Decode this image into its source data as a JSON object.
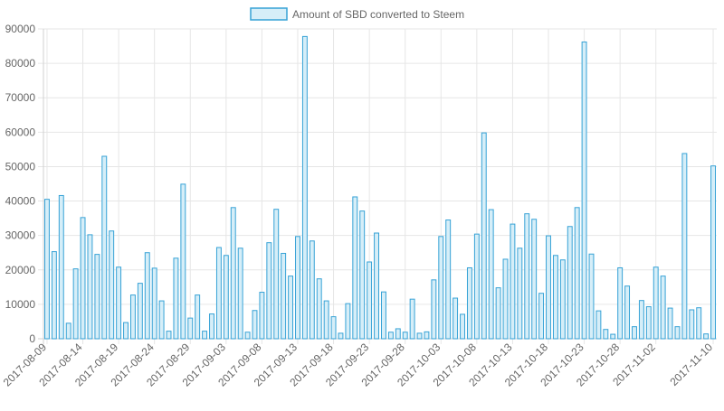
{
  "legend": {
    "label": "Amount of SBD converted to Steem"
  },
  "colors": {
    "bar_fill": "#d6eef8",
    "bar_stroke": "#36a2d6",
    "grid": "#e6e6e6",
    "axis": "#d0d0d0",
    "tick_text": "#666666"
  },
  "chart_data": {
    "type": "bar",
    "title": "",
    "xlabel": "",
    "ylabel": "",
    "ylim": [
      0,
      90000
    ],
    "yticks": [
      0,
      10000,
      20000,
      30000,
      40000,
      50000,
      60000,
      70000,
      80000,
      90000
    ],
    "grid": true,
    "legend_position": "top",
    "series": [
      {
        "name": "Amount of SBD converted to Steem",
        "values": [
          40500,
          25300,
          41600,
          4500,
          20300,
          35200,
          30200,
          24500,
          53000,
          31300,
          20800,
          4700,
          12700,
          16100,
          25000,
          20500,
          11000,
          2200,
          23400,
          44900,
          6000,
          12700,
          2200,
          7200,
          26500,
          24200,
          38100,
          26300,
          1900,
          8200,
          13500,
          27900,
          37600,
          24800,
          18200,
          29700,
          87800,
          28400,
          17400,
          11000,
          6400,
          1600,
          10200,
          41200,
          37100,
          22300,
          30700,
          13600,
          1900,
          2900,
          1900,
          11500,
          1600,
          2000,
          17100,
          29700,
          34500,
          11800,
          7100,
          20600,
          30400,
          59800,
          37500,
          14800,
          23100,
          33300,
          26300,
          36300,
          34700,
          13200,
          29900,
          24200,
          22900,
          32600,
          38100,
          86200,
          24600,
          8100,
          2700,
          1300,
          20600,
          15300,
          3500,
          11100,
          9300,
          20800,
          18200,
          8900,
          3500,
          53800,
          8400,
          9000,
          1400,
          50200
        ]
      }
    ],
    "x_tick_labels": [
      {
        "index": 0,
        "label": "2017-08-09"
      },
      {
        "index": 5,
        "label": "2017-08-14"
      },
      {
        "index": 10,
        "label": "2017-08-19"
      },
      {
        "index": 15,
        "label": "2017-08-24"
      },
      {
        "index": 20,
        "label": "2017-08-29"
      },
      {
        "index": 25,
        "label": "2017-09-03"
      },
      {
        "index": 30,
        "label": "2017-09-08"
      },
      {
        "index": 35,
        "label": "2017-09-13"
      },
      {
        "index": 40,
        "label": "2017-09-18"
      },
      {
        "index": 45,
        "label": "2017-09-23"
      },
      {
        "index": 50,
        "label": "2017-09-28"
      },
      {
        "index": 55,
        "label": "2017-10-03"
      },
      {
        "index": 60,
        "label": "2017-10-08"
      },
      {
        "index": 65,
        "label": "2017-10-13"
      },
      {
        "index": 70,
        "label": "2017-10-18"
      },
      {
        "index": 75,
        "label": "2017-10-23"
      },
      {
        "index": 80,
        "label": "2017-10-28"
      },
      {
        "index": 85,
        "label": "2017-11-02"
      },
      {
        "index": 93,
        "label": "2017-11-10"
      }
    ]
  }
}
